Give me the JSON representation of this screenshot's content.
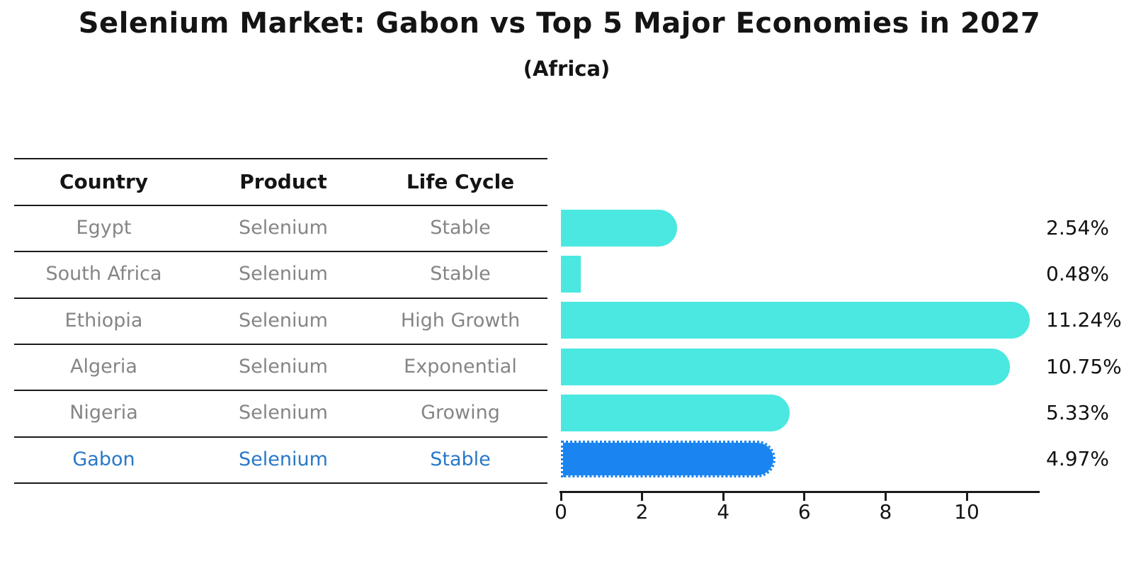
{
  "chart_data": {
    "type": "bar",
    "orientation": "horizontal",
    "title": "Selenium Market: Gabon vs Top 5 Major Economies in 2027",
    "subtitle": "(Africa)",
    "categories": [
      "Egypt",
      "South Africa",
      "Ethiopia",
      "Algeria",
      "Nigeria",
      "Gabon"
    ],
    "values": [
      2.54,
      0.48,
      11.24,
      10.75,
      5.33,
      4.97
    ],
    "value_labels": [
      "2.54%",
      "0.48%",
      "11.24%",
      "10.75%",
      "5.33%",
      "4.97%"
    ],
    "x_ticks": [
      0,
      2,
      4,
      6,
      8,
      10
    ],
    "xlim": [
      0,
      11.85
    ],
    "xlabel": "",
    "ylabel": "",
    "grid": false,
    "legend": false,
    "highlight_index": 5,
    "colors": {
      "bar": "#4ae8e1",
      "highlight_bar": "#1a84f0",
      "highlight_text": "#2878c8",
      "label_text": "#111111"
    }
  },
  "table": {
    "headers": [
      "Country",
      "Product",
      "Life Cycle"
    ],
    "rows": [
      {
        "country": "Egypt",
        "product": "Selenium",
        "life_cycle": "Stable",
        "highlight": false
      },
      {
        "country": "South Africa",
        "product": "Selenium",
        "life_cycle": "Stable",
        "highlight": false
      },
      {
        "country": "Ethiopia",
        "product": "Selenium",
        "life_cycle": "High Growth",
        "highlight": false
      },
      {
        "country": "Algeria",
        "product": "Selenium",
        "life_cycle": "Exponential",
        "highlight": false
      },
      {
        "country": "Nigeria",
        "product": "Selenium",
        "life_cycle": "Growing",
        "highlight": false
      },
      {
        "country": "Gabon",
        "product": "Selenium",
        "life_cycle": "Stable",
        "highlight": true
      }
    ]
  }
}
